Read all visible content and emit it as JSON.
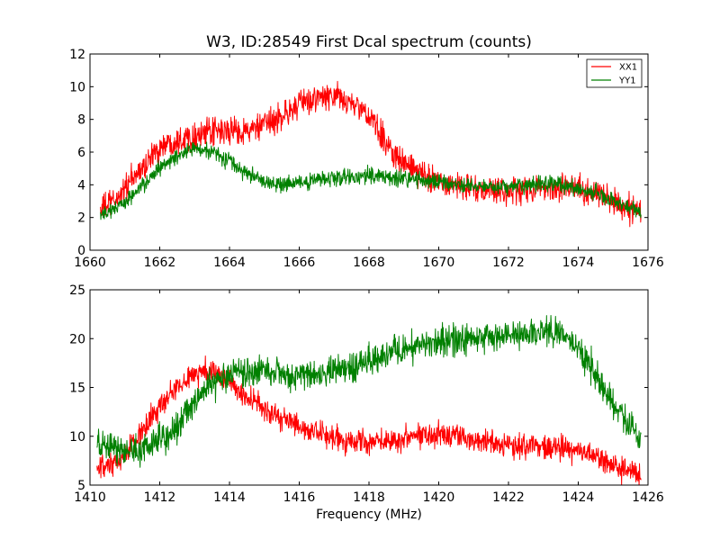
{
  "chart_data": [
    {
      "type": "line",
      "title": "W3, ID:28549 First Dcal spectrum (counts)",
      "xlabel": "",
      "ylabel": "",
      "xlim": [
        1660,
        1676
      ],
      "ylim": [
        0,
        12
      ],
      "xticks": [
        "1660",
        "1662",
        "1664",
        "1666",
        "1668",
        "1670",
        "1672",
        "1674",
        "1676"
      ],
      "yticks": [
        "0",
        "2",
        "4",
        "6",
        "8",
        "10",
        "12"
      ],
      "grid": false,
      "legend_position": "top-right",
      "series": [
        {
          "name": "XX1",
          "color": "#ff0000",
          "noise": 0.6,
          "x": [
            1660.3,
            1660.7,
            1661.0,
            1661.5,
            1662.0,
            1662.5,
            1663.0,
            1663.5,
            1664.0,
            1664.5,
            1665.0,
            1665.5,
            1666.0,
            1666.5,
            1667.0,
            1667.5,
            1668.0,
            1668.5,
            1669.0,
            1669.5,
            1670.0,
            1670.5,
            1671.0,
            1671.5,
            1672.0,
            1672.5,
            1673.0,
            1673.5,
            1674.0,
            1674.5,
            1675.0,
            1675.5,
            1675.8
          ],
          "y": [
            2.5,
            3.0,
            3.8,
            5.0,
            6.3,
            6.8,
            7.0,
            7.2,
            7.3,
            7.3,
            7.6,
            8.2,
            8.9,
            9.3,
            9.4,
            9.0,
            8.2,
            6.5,
            5.3,
            4.6,
            4.3,
            4.0,
            3.7,
            3.6,
            3.6,
            3.7,
            3.8,
            3.9,
            3.8,
            3.5,
            3.0,
            2.5,
            2.3
          ]
        },
        {
          "name": "YY1",
          "color": "#008000",
          "noise": 0.35,
          "x": [
            1660.3,
            1660.7,
            1661.0,
            1661.5,
            1662.0,
            1662.5,
            1663.0,
            1663.5,
            1664.0,
            1664.5,
            1665.0,
            1665.5,
            1666.0,
            1666.5,
            1667.0,
            1667.5,
            1668.0,
            1668.5,
            1669.0,
            1669.5,
            1670.0,
            1670.5,
            1671.0,
            1671.5,
            1672.0,
            1672.5,
            1673.0,
            1673.5,
            1674.0,
            1674.5,
            1675.0,
            1675.5,
            1675.8
          ],
          "y": [
            2.2,
            2.5,
            2.9,
            3.9,
            5.0,
            5.8,
            6.2,
            6.1,
            5.4,
            4.7,
            4.2,
            3.9,
            4.1,
            4.3,
            4.4,
            4.5,
            4.6,
            4.5,
            4.4,
            4.3,
            4.1,
            4.0,
            3.9,
            3.9,
            3.9,
            4.0,
            4.1,
            4.0,
            3.8,
            3.5,
            3.0,
            2.6,
            2.4
          ]
        }
      ]
    },
    {
      "type": "line",
      "title": "",
      "xlabel": "Frequency (MHz)",
      "ylabel": "",
      "xlim": [
        1410,
        1426
      ],
      "ylim": [
        5,
        25
      ],
      "xticks": [
        "1410",
        "1412",
        "1414",
        "1416",
        "1418",
        "1420",
        "1422",
        "1424",
        "1426"
      ],
      "yticks": [
        "5",
        "10",
        "15",
        "20",
        "25"
      ],
      "grid": false,
      "series": [
        {
          "name": "XX1",
          "color": "#ff0000",
          "noise": 0.9,
          "x": [
            1410.2,
            1410.7,
            1411.0,
            1411.5,
            1412.0,
            1412.5,
            1413.0,
            1413.5,
            1414.0,
            1414.5,
            1415.0,
            1415.5,
            1416.0,
            1416.5,
            1417.0,
            1417.5,
            1418.0,
            1418.5,
            1419.0,
            1419.5,
            1420.0,
            1420.5,
            1421.0,
            1421.5,
            1422.0,
            1422.5,
            1423.0,
            1423.5,
            1424.0,
            1424.5,
            1425.0,
            1425.5,
            1425.8
          ],
          "y": [
            6.5,
            7.0,
            8.0,
            10.5,
            13.0,
            15.0,
            16.5,
            16.8,
            15.5,
            14.0,
            12.8,
            11.8,
            11.0,
            10.2,
            9.8,
            9.5,
            9.4,
            9.6,
            9.9,
            10.2,
            10.3,
            10.1,
            9.7,
            9.4,
            9.1,
            9.0,
            9.1,
            8.9,
            8.5,
            7.8,
            7.0,
            6.3,
            6.0
          ]
        },
        {
          "name": "YY1",
          "color": "#008000",
          "noise": 1.1,
          "x": [
            1410.2,
            1410.7,
            1411.0,
            1411.5,
            1412.0,
            1412.5,
            1413.0,
            1413.5,
            1414.0,
            1414.5,
            1415.0,
            1415.5,
            1416.0,
            1416.5,
            1417.0,
            1417.5,
            1418.0,
            1418.5,
            1419.0,
            1419.5,
            1420.0,
            1420.5,
            1421.0,
            1421.5,
            1422.0,
            1422.5,
            1423.0,
            1423.5,
            1424.0,
            1424.5,
            1425.0,
            1425.5,
            1425.8
          ],
          "y": [
            9.0,
            8.7,
            8.6,
            8.8,
            9.5,
            11.0,
            13.5,
            15.5,
            16.2,
            16.4,
            16.5,
            16.4,
            16.3,
            16.4,
            16.6,
            16.9,
            17.5,
            18.3,
            19.0,
            19.4,
            19.6,
            19.8,
            20.0,
            20.2,
            20.3,
            20.6,
            20.8,
            20.5,
            19.0,
            16.5,
            13.5,
            11.0,
            9.6
          ]
        }
      ]
    }
  ]
}
